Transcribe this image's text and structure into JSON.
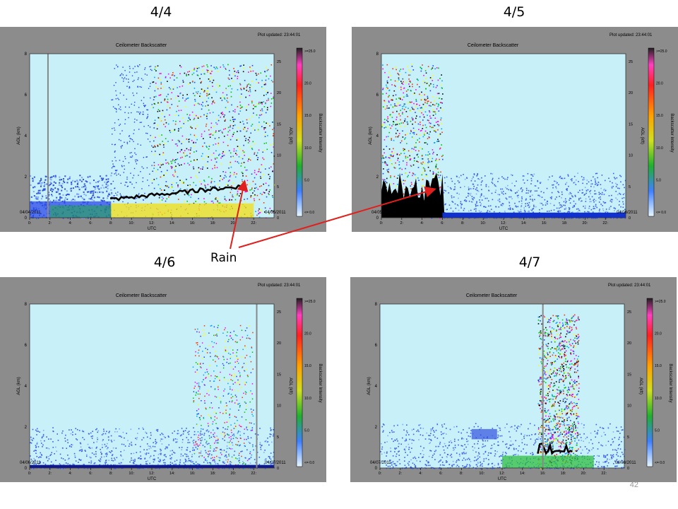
{
  "slide": {
    "rain_label": "Rain",
    "page_number": "42"
  },
  "colors": {
    "panel_bg": "#8c8c8c",
    "clear_sky": "#c8f0f8",
    "arrow": "#e0201c"
  },
  "chart_data": [
    {
      "type": "heatmap",
      "date_title": "4/4",
      "title": "Ceilometer Backscatter",
      "plot_updated": "Plot updated: 23:44:01",
      "xlabel": "UTC",
      "ylabel_left": "AGL (km)",
      "ylabel_right": "AGL (kft)",
      "colorbar_label": "Backscatter Intensity",
      "start_date": "04/04/2011",
      "end_date": "04/05/2011",
      "x_ticks": [
        "0:",
        "2:",
        "4:",
        "6:",
        "8:",
        "10:",
        "12:",
        "14:",
        "16:",
        "18:",
        "20:",
        "22:"
      ],
      "y_ticks_km": [
        "0",
        "2",
        "4",
        "6",
        "8"
      ],
      "y_ticks_kft": [
        "0",
        "5",
        "10",
        "15",
        "20",
        "25"
      ],
      "colorbar_ticks": [
        ">=25.0",
        "20.0",
        "15.0",
        "10.0",
        "5.0",
        "<= 0.0"
      ],
      "ylim_km": [
        0,
        8
      ],
      "features": "Aerosol layer up to ~2 km until 8 UTC; noisy precipitation streaks after 12 UTC; black cloud base rising to ~1 km; rain near 21 UTC"
    },
    {
      "type": "heatmap",
      "date_title": "4/5",
      "title": "Ceilometer Backscatter",
      "plot_updated": "Plot updated: 23:44:01",
      "xlabel": "UTC",
      "ylabel_left": "AGL (km)",
      "ylabel_right": "AGL (kft)",
      "colorbar_label": "Backscatter Intensity",
      "start_date": "04/05/2011",
      "end_date": "04/06/2011",
      "x_ticks": [
        "0:",
        "2:",
        "4:",
        "6:",
        "8:",
        "10:",
        "12:",
        "14:",
        "16:",
        "18:",
        "20:",
        "22:"
      ],
      "y_ticks_km": [
        "0",
        "2",
        "4",
        "6",
        "8"
      ],
      "y_ticks_kft": [
        "0",
        "5",
        "10",
        "15",
        "20",
        "25"
      ],
      "colorbar_ticks": [
        ">=25.0",
        "20.0",
        "15.0",
        "10.0",
        "5.0",
        "<= 0.0"
      ],
      "ylim_km": [
        0,
        8
      ],
      "features": "Rain and low cloud 0-6 UTC; blue boundary layer plumes up to ~2 km afterwards"
    },
    {
      "type": "heatmap",
      "date_title": "4/6",
      "title": "Ceilometer Backscatter",
      "plot_updated": "Plot updated: 23:44:01",
      "xlabel": "UTC",
      "ylabel_left": "AGL (km)",
      "ylabel_right": "AGL (kft)",
      "colorbar_label": "Backscatter Intensity",
      "start_date": "04/06/2011",
      "end_date": "04/07/2011",
      "x_ticks": [
        "0:",
        "2:",
        "4:",
        "6:",
        "8:",
        "10:",
        "12:",
        "14:",
        "16:",
        "18:",
        "20:",
        "22:"
      ],
      "y_ticks_km": [
        "0",
        "2",
        "4",
        "6",
        "8"
      ],
      "y_ticks_kft": [
        "0",
        "5",
        "10",
        "15",
        "20",
        "25"
      ],
      "colorbar_ticks": [
        ">=25.0",
        "20.0",
        "15.0",
        "10.0",
        "5.0",
        "<= 0.0"
      ],
      "ylim_km": [
        0,
        8
      ],
      "features": "Periodic plumes to ~2 km all day; noisy streaks 16-22 UTC; thin black layer near ground"
    },
    {
      "type": "heatmap",
      "date_title": "4/7",
      "title": "Ceilometer Backscatter",
      "plot_updated": "Plot updated: 23:44:01",
      "xlabel": "UTC",
      "ylabel_left": "AGL (km)",
      "ylabel_right": "AGL (kft)",
      "colorbar_label": "Backscatter Intensity",
      "start_date": "04/07/2011",
      "end_date": "04/08/2011",
      "x_ticks": [
        "0:",
        "2:",
        "4:",
        "6:",
        "8:",
        "10:",
        "12:",
        "14:",
        "16:",
        "18:",
        "20:",
        "22:"
      ],
      "y_ticks_km": [
        "0",
        "2",
        "4",
        "6",
        "8"
      ],
      "y_ticks_kft": [
        "0",
        "5",
        "10",
        "15",
        "20",
        "25"
      ],
      "colorbar_ticks": [
        ">=25.0",
        "20.0",
        "15.0",
        "10.0",
        "5.0",
        "<= 0.0"
      ],
      "ylim_km": [
        0,
        8
      ],
      "features": "Plumes to ~2 km; elevated layer near 10 UTC; heavy noisy band 16-19 UTC with black cloud near 1 km"
    }
  ]
}
